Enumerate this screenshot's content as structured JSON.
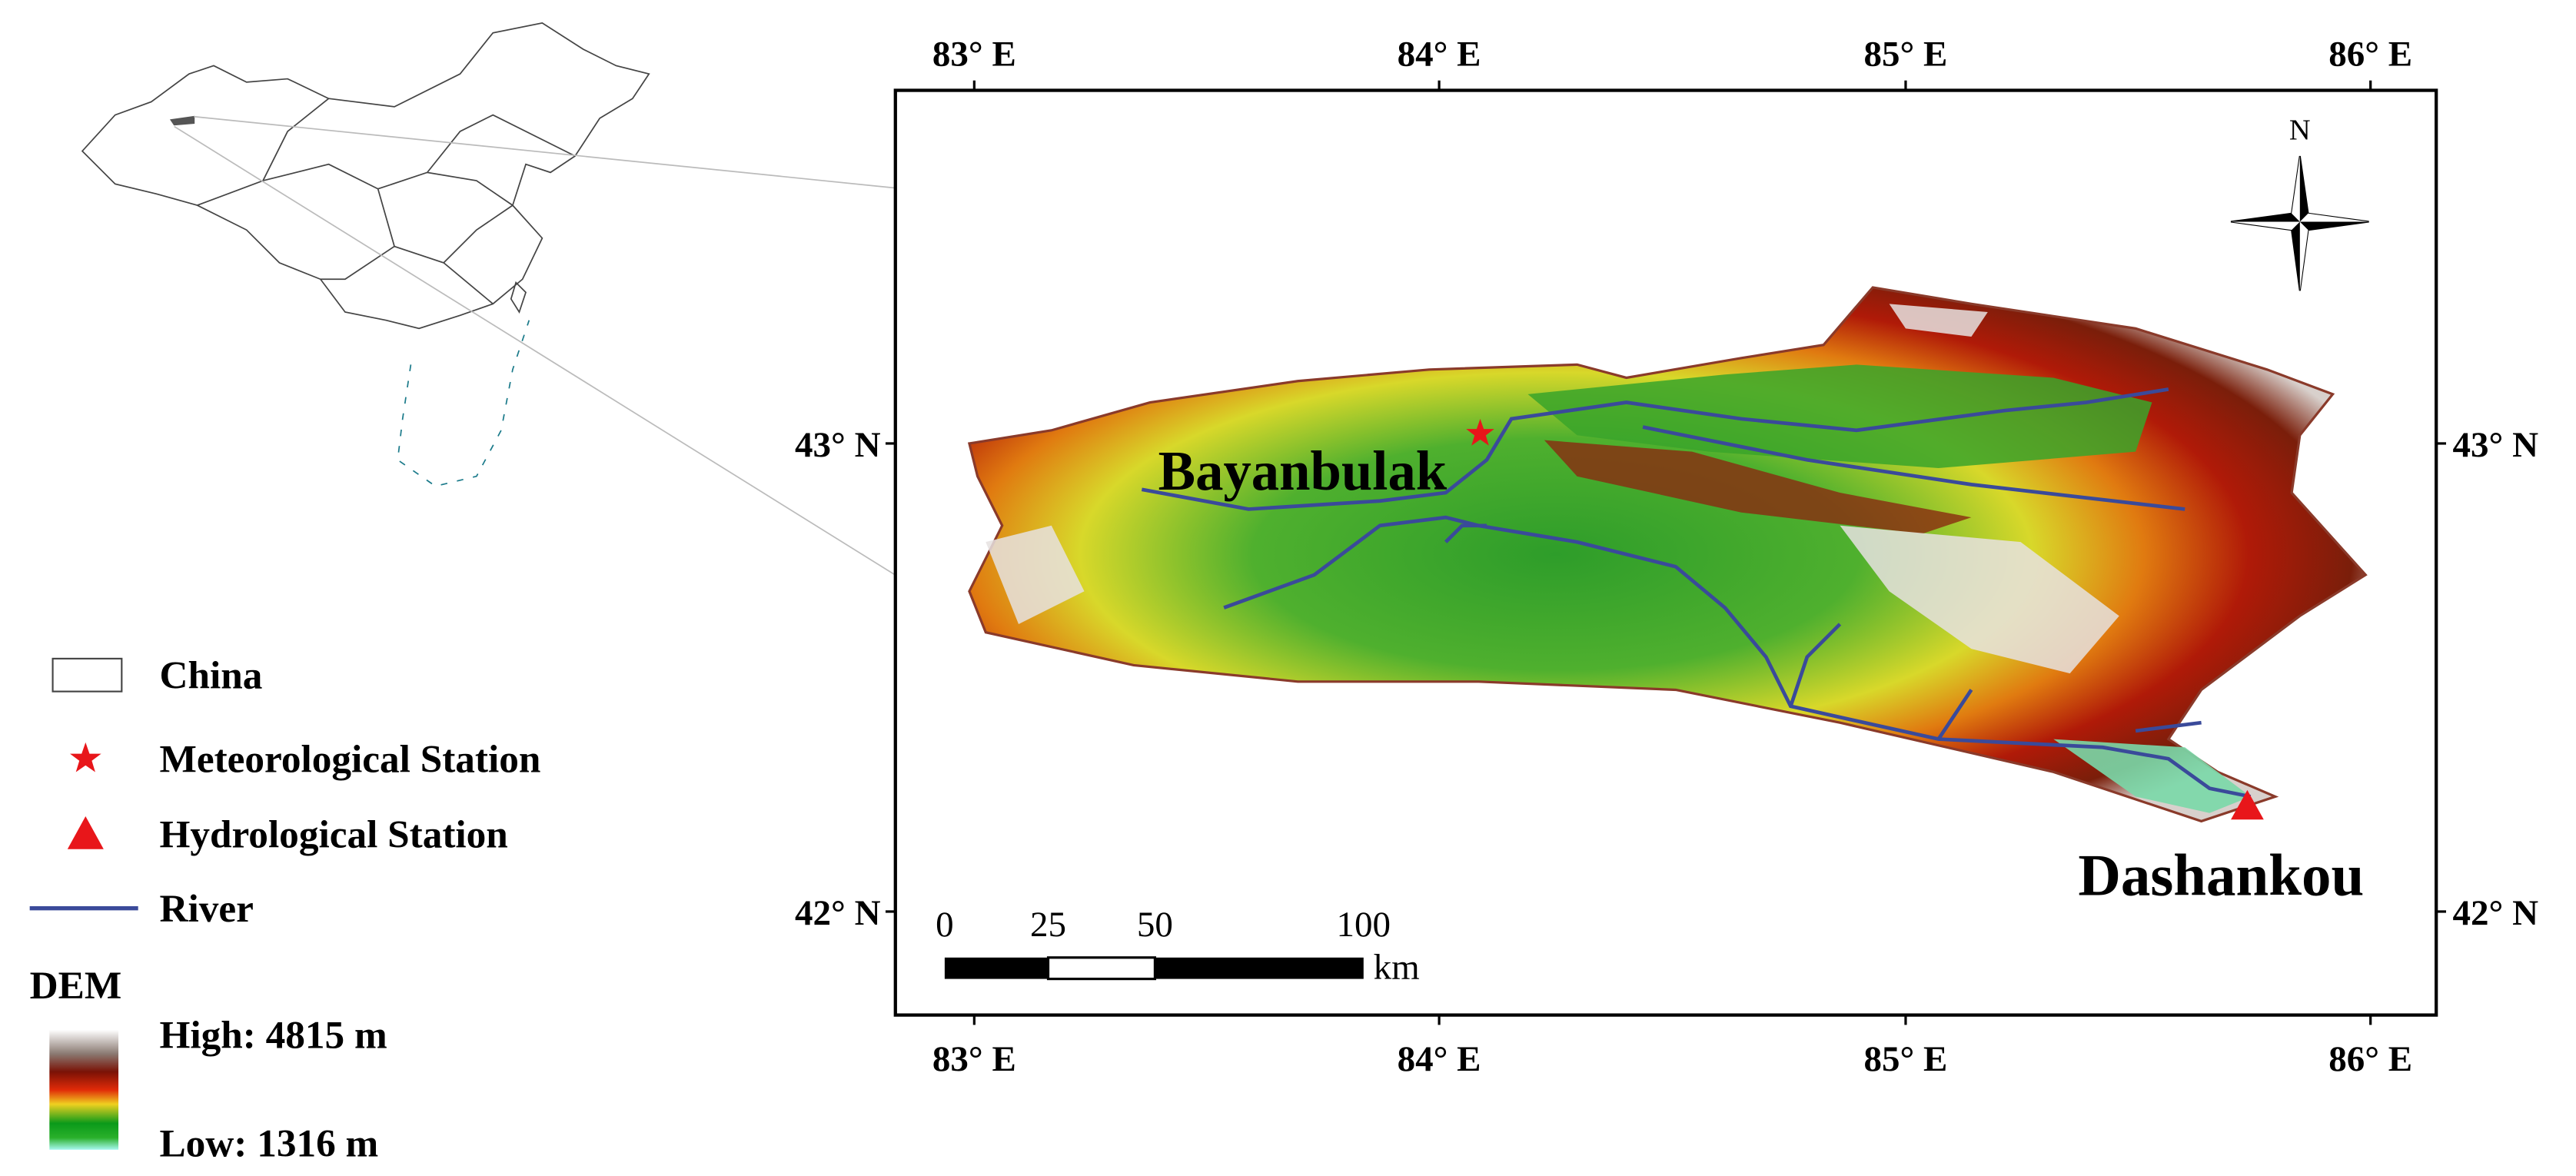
{
  "map": {
    "top_lon_labels": [
      "83° E",
      "84° E",
      "85° E",
      "86° E"
    ],
    "bottom_lon_labels": [
      "83° E",
      "84° E",
      "85° E",
      "86° E"
    ],
    "left_lat_labels": [
      "43° N",
      "42° N"
    ],
    "right_lat_labels": [
      "43° N",
      "42° N"
    ],
    "north_label": "N",
    "stations": {
      "meteorological": "Bayanbulak",
      "hydrological": "Dashankou"
    },
    "scale_bar": {
      "labels": [
        "0",
        "25",
        "50",
        "100"
      ],
      "unit": "km"
    }
  },
  "legend": {
    "items": [
      "China",
      "Meteorological Station",
      "Hydrological Station",
      "River"
    ],
    "dem_title": "DEM",
    "dem_high": "High: 4815 m",
    "dem_low": "Low: 1316 m"
  }
}
